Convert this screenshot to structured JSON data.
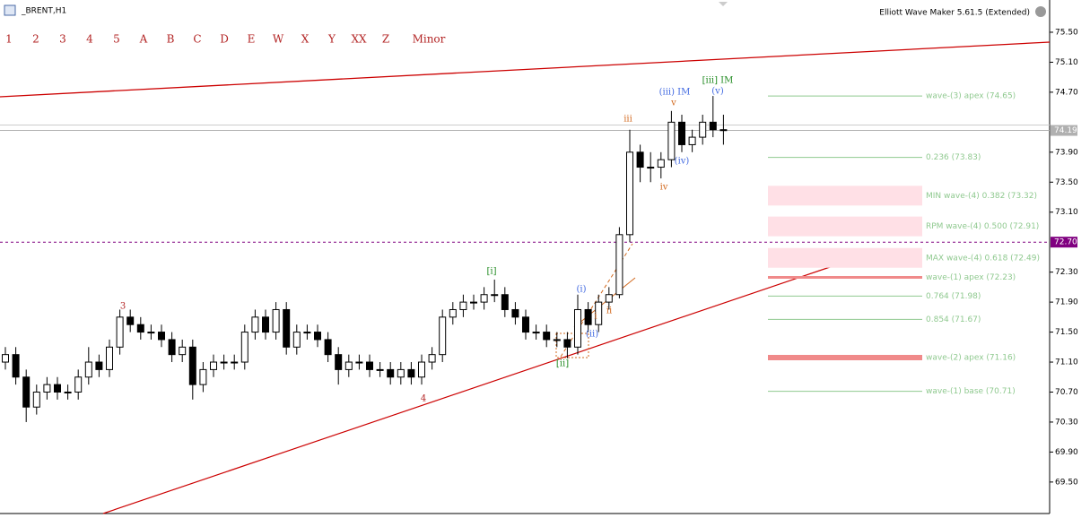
{
  "window": {
    "symbol": "_BRENT,H1",
    "indicator": "Elliott Wave Maker 5.61.5 (Extended)"
  },
  "toolbar": [
    "1",
    "2",
    "3",
    "4",
    "5",
    "A",
    "B",
    "C",
    "D",
    "E",
    "W",
    "X",
    "Y",
    "XX",
    "Z",
    "Minor"
  ],
  "chart_data": {
    "type": "candlestick",
    "open": [
      71.1,
      71.2,
      70.9,
      70.5,
      70.7,
      70.8,
      70.7,
      70.7,
      70.9,
      71.1,
      71.0,
      71.3,
      71.7,
      71.6,
      71.5,
      71.5,
      71.4,
      71.2,
      71.3,
      70.8,
      71.0,
      71.1,
      71.1,
      71.1,
      71.5,
      71.7,
      71.5,
      71.8,
      71.3,
      71.5,
      71.5,
      71.4,
      71.2,
      71.0,
      71.1,
      71.1,
      71.0,
      71.0,
      70.9,
      71.0,
      70.9,
      71.1,
      71.2,
      71.7,
      71.8,
      71.9,
      71.9,
      72.0,
      72.0,
      71.8,
      71.7,
      71.5,
      71.5,
      71.4,
      71.4,
      71.3,
      71.8,
      71.6,
      71.9,
      72.0,
      72.8,
      73.9,
      73.7,
      73.7,
      73.8,
      74.3,
      74.0,
      74.1,
      74.3,
      74.2
    ],
    "high": [
      71.3,
      71.3,
      71.0,
      70.8,
      70.9,
      70.9,
      70.8,
      71.0,
      71.3,
      71.2,
      71.4,
      71.8,
      71.8,
      71.7,
      71.6,
      71.6,
      71.5,
      71.4,
      71.4,
      71.1,
      71.2,
      71.2,
      71.2,
      71.6,
      71.8,
      71.8,
      71.9,
      71.9,
      71.6,
      71.6,
      71.6,
      71.5,
      71.3,
      71.2,
      71.2,
      71.2,
      71.1,
      71.1,
      71.1,
      71.1,
      71.2,
      71.3,
      71.8,
      71.9,
      72.0,
      72.0,
      72.1,
      72.2,
      72.1,
      71.9,
      71.8,
      71.6,
      71.6,
      71.5,
      71.5,
      72.0,
      71.9,
      72.0,
      72.1,
      72.9,
      74.2,
      74.0,
      73.9,
      73.9,
      74.45,
      74.4,
      74.2,
      74.4,
      74.65,
      74.4
    ],
    "low": [
      71.0,
      70.8,
      70.3,
      70.4,
      70.6,
      70.6,
      70.6,
      70.6,
      70.8,
      70.9,
      70.9,
      71.2,
      71.5,
      71.4,
      71.4,
      71.3,
      71.1,
      71.1,
      70.6,
      70.7,
      70.9,
      71.0,
      71.0,
      71.0,
      71.4,
      71.4,
      71.4,
      71.2,
      71.2,
      71.4,
      71.3,
      71.1,
      70.8,
      70.9,
      71.0,
      70.9,
      70.9,
      70.8,
      70.8,
      70.8,
      70.8,
      71.0,
      71.1,
      71.6,
      71.7,
      71.8,
      71.8,
      71.9,
      71.7,
      71.6,
      71.4,
      71.4,
      71.3,
      71.3,
      71.15,
      71.2,
      71.5,
      71.5,
      71.8,
      71.95,
      72.7,
      73.5,
      73.5,
      73.55,
      73.7,
      73.9,
      73.9,
      74.0,
      74.1,
      74.0
    ],
    "close": [
      71.2,
      70.9,
      70.5,
      70.7,
      70.8,
      70.7,
      70.7,
      70.9,
      71.1,
      71.0,
      71.3,
      71.7,
      71.6,
      71.5,
      71.5,
      71.4,
      71.2,
      71.3,
      70.8,
      71.0,
      71.1,
      71.1,
      71.1,
      71.5,
      71.7,
      71.5,
      71.8,
      71.3,
      71.5,
      71.5,
      71.4,
      71.2,
      71.0,
      71.1,
      71.1,
      71.0,
      71.0,
      70.9,
      71.0,
      70.9,
      71.1,
      71.2,
      71.7,
      71.8,
      71.9,
      71.9,
      72.0,
      72.0,
      71.8,
      71.7,
      71.5,
      71.5,
      71.4,
      71.4,
      71.3,
      71.8,
      71.6,
      71.9,
      72.0,
      72.8,
      73.9,
      73.7,
      73.7,
      73.8,
      74.3,
      74.0,
      74.1,
      74.3,
      74.2,
      74.19
    ],
    "ylim": [
      69.08,
      75.93
    ],
    "yticks": [
      {
        "value": 75.5,
        "label": "75.50"
      },
      {
        "value": 75.1,
        "label": "75.10"
      },
      {
        "value": 74.7,
        "label": "74.70"
      },
      {
        "value": 73.9,
        "label": "73.90"
      },
      {
        "value": 73.5,
        "label": "73.50"
      },
      {
        "value": 73.1,
        "label": "73.10"
      },
      {
        "value": 72.3,
        "label": "72.30"
      },
      {
        "value": 71.9,
        "label": "71.90"
      },
      {
        "value": 71.5,
        "label": "71.50"
      },
      {
        "value": 71.1,
        "label": "71.10"
      },
      {
        "value": 70.7,
        "label": "70.70"
      },
      {
        "value": 70.3,
        "label": "70.30"
      },
      {
        "value": 69.9,
        "label": "69.90"
      },
      {
        "value": 69.5,
        "label": "69.50"
      }
    ],
    "hlines": [
      {
        "value": 74.19,
        "label": "74.19",
        "color": "#b0b0b0"
      },
      {
        "value": 72.7,
        "label": "72.70",
        "color": "#800080"
      }
    ],
    "levels": [
      {
        "label": "wave-(3) apex (74.65)",
        "value": 74.65,
        "style": "line"
      },
      {
        "label": "0.236 (73.83)",
        "value": 73.83,
        "style": "line"
      },
      {
        "label": "MIN wave-(4) 0.382 (73.32)",
        "value": 73.32,
        "style": "zone"
      },
      {
        "label": "RPM wave-(4) 0.500 (72.91)",
        "value": 72.91,
        "style": "zone"
      },
      {
        "label": "MAX wave-(4) 0.618 (72.49)",
        "value": 72.49,
        "style": "zone"
      },
      {
        "label": "wave-(1) apex (72.23)",
        "value": 72.23,
        "style": "thick"
      },
      {
        "label": "0.764 (71.98)",
        "value": 71.98,
        "style": "line"
      },
      {
        "label": "0.854 (71.67)",
        "value": 71.67,
        "style": "line"
      },
      {
        "label": "wave-(2) apex (71.16)",
        "value": 71.16,
        "style": "thick"
      },
      {
        "label": "wave-(1) base (70.71)",
        "value": 70.71,
        "style": "line"
      }
    ],
    "wave_labels": [
      {
        "text": "3",
        "color": "#b22222"
      },
      {
        "text": "4",
        "color": "#b22222"
      },
      {
        "text": "[i]",
        "color": "#228b22"
      },
      {
        "text": "[ii]",
        "color": "#228b22"
      },
      {
        "text": "[iii] IM",
        "color": "#228b22"
      },
      {
        "text": "(i)",
        "color": "#4169e1"
      },
      {
        "text": "(ii)",
        "color": "#4169e1"
      },
      {
        "text": "(iii) IM",
        "color": "#4169e1"
      },
      {
        "text": "(iv)",
        "color": "#4169e1"
      },
      {
        "text": "(v)",
        "color": "#4169e1"
      },
      {
        "text": "i",
        "color": "#d2691e"
      },
      {
        "text": "ii",
        "color": "#d2691e"
      },
      {
        "text": "iii",
        "color": "#d2691e"
      },
      {
        "text": "iv",
        "color": "#d2691e"
      },
      {
        "text": "v",
        "color": "#d2691e"
      }
    ]
  }
}
